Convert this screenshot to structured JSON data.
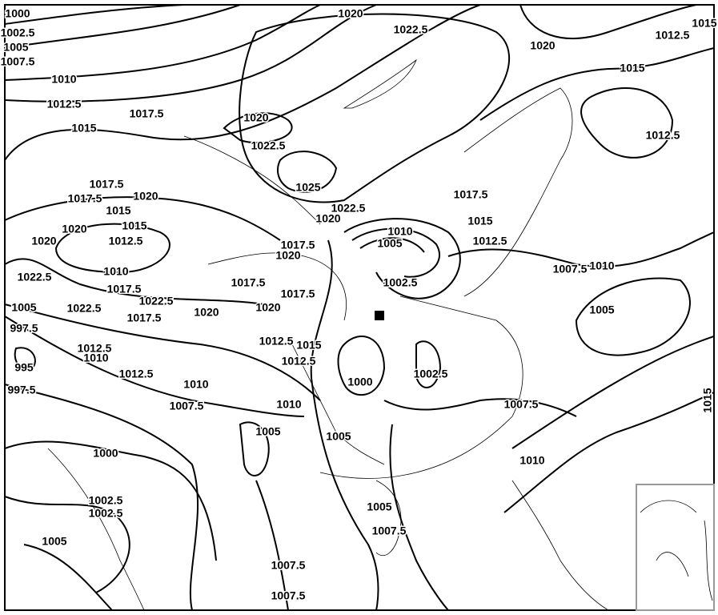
{
  "map": {
    "isobar_labels": [
      "1000",
      "1002.5",
      "1005",
      "1007.5",
      "1010",
      "1012.5",
      "1015",
      "1017.5",
      "1020",
      "1022.5",
      "1020",
      "1012.5",
      "1015",
      "1015",
      "1020",
      "1022.5",
      "1025",
      "1012.5",
      "1017.5",
      "1017.5",
      "1020",
      "1015",
      "1015",
      "1020",
      "1012.5",
      "1020",
      "1010",
      "1022.5",
      "1017.5",
      "1022.5",
      "1005",
      "1022.5",
      "997.5",
      "1017.5",
      "1020",
      "1012.5",
      "1010",
      "995",
      "1012.5",
      "1010",
      "997.5",
      "1007.5",
      "1022.5",
      "1020",
      "1017.5",
      "1015",
      "1012.5",
      "1010",
      "1005",
      "1017.5",
      "1020",
      "1017.5",
      "1017.5",
      "1020",
      "1002.5",
      "1007.5",
      "1010",
      "1005",
      "1012.5",
      "1015",
      "1012.5",
      "1000",
      "1002.5",
      "1007.5",
      "1010",
      "1005",
      "1005",
      "1000",
      "1010",
      "1002.5",
      "1002.5",
      "1005",
      "1005",
      "1007.5",
      "1007.5",
      "1007.5",
      "1015"
    ]
  }
}
